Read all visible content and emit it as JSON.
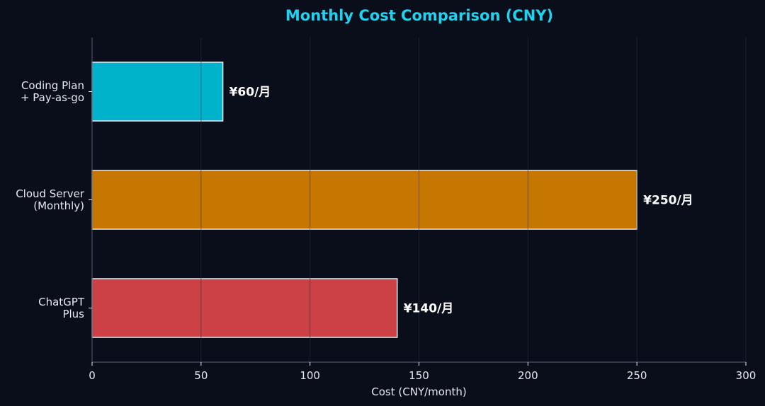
{
  "chart_data": {
    "type": "bar",
    "orientation": "horizontal",
    "title": "Monthly Cost Comparison (CNY)",
    "xlabel": "Cost (CNY/month)",
    "ylabel": "",
    "xlim": [
      0,
      300
    ],
    "xticks": [
      0,
      50,
      100,
      150,
      200,
      250,
      300
    ],
    "grid": "vertical",
    "categories": [
      [
        "Coding Plan",
        "+ Pay-as-go"
      ],
      [
        "Cloud Server",
        "(Monthly)"
      ],
      [
        "ChatGPT",
        "Plus"
      ]
    ],
    "values": [
      60,
      250,
      140
    ],
    "data_labels": [
      "¥60/月",
      "¥250/月",
      "¥140/月"
    ],
    "colors": [
      "#00bcd4",
      "#d17d00",
      "#d64548"
    ]
  },
  "style": {
    "background": "#0a0e1a",
    "title_color": "#1fd3f0",
    "text_color": "#e6e9ef",
    "axis_color": "#4a5068",
    "grid_color": "#2a3040",
    "bar_edge_color": "#e8ecf2"
  }
}
